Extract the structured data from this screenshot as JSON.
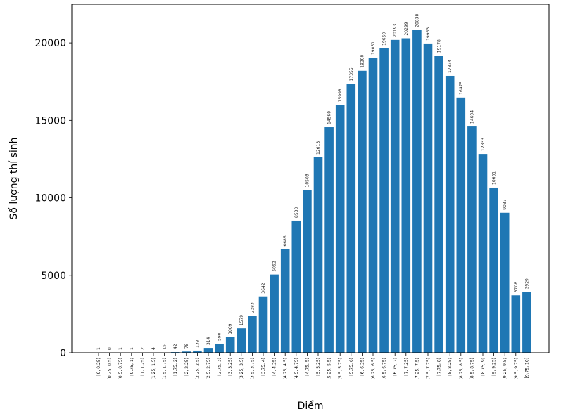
{
  "chart_data": {
    "type": "bar",
    "title": "",
    "xlabel": "Điểm",
    "ylabel": "Số lượng thí sinh",
    "ylim": [
      0,
      22500
    ],
    "y_ticks": [
      "0",
      "5000",
      "10000",
      "15000",
      "20000"
    ],
    "y_tick_values": [
      0,
      5000,
      10000,
      15000,
      20000
    ],
    "grid": false,
    "bar_color": "#1f77b4",
    "categories": [
      "[0, 0.25)",
      "[0.25, 0.5)",
      "[0.5, 0.75)",
      "[0.75, 1)",
      "[1, 1.25)",
      "[1.25, 1.5)",
      "[1.5, 1.75)",
      "[1.75, 2)",
      "[2, 2.25)",
      "[2.25, 2.5)",
      "[2.5, 2.75)",
      "[2.75, 3)",
      "[3, 3.25)",
      "[3.25, 3.5)",
      "[3.5, 3.75)",
      "[3.75, 4)",
      "[4, 4.25)",
      "[4.25, 4.5)",
      "[4.5, 4.75)",
      "[4.75, 5)",
      "[5, 5.25)",
      "[5.25, 5.5)",
      "[5.5, 5.75)",
      "[5.75, 6)",
      "[6, 6.25)",
      "[6.25, 6.5)",
      "[6.5, 6.75)",
      "[6.75, 7)",
      "[7, 7.25)",
      "[7.25, 7.5)",
      "[7.5, 7.75)",
      "[7.75, 8)",
      "[8, 8.25)",
      "[8.25, 8.5)",
      "[8.5, 8.75)",
      "[8.75, 9)",
      "[9, 9.25)",
      "[9.25, 9.5)",
      "[9.5, 9.75)",
      "[9.75, 10]"
    ],
    "values": [
      1,
      0,
      1,
      1,
      2,
      4,
      15,
      42,
      78,
      138,
      314,
      590,
      1009,
      1579,
      2383,
      3642,
      5052,
      6686,
      8530,
      10503,
      12613,
      14560,
      15998,
      17355,
      18200,
      19051,
      19650,
      20193,
      20299,
      20830,
      19963,
      19178,
      17874,
      16475,
      14604,
      12833,
      10661,
      9037,
      3708,
      3929
    ]
  }
}
